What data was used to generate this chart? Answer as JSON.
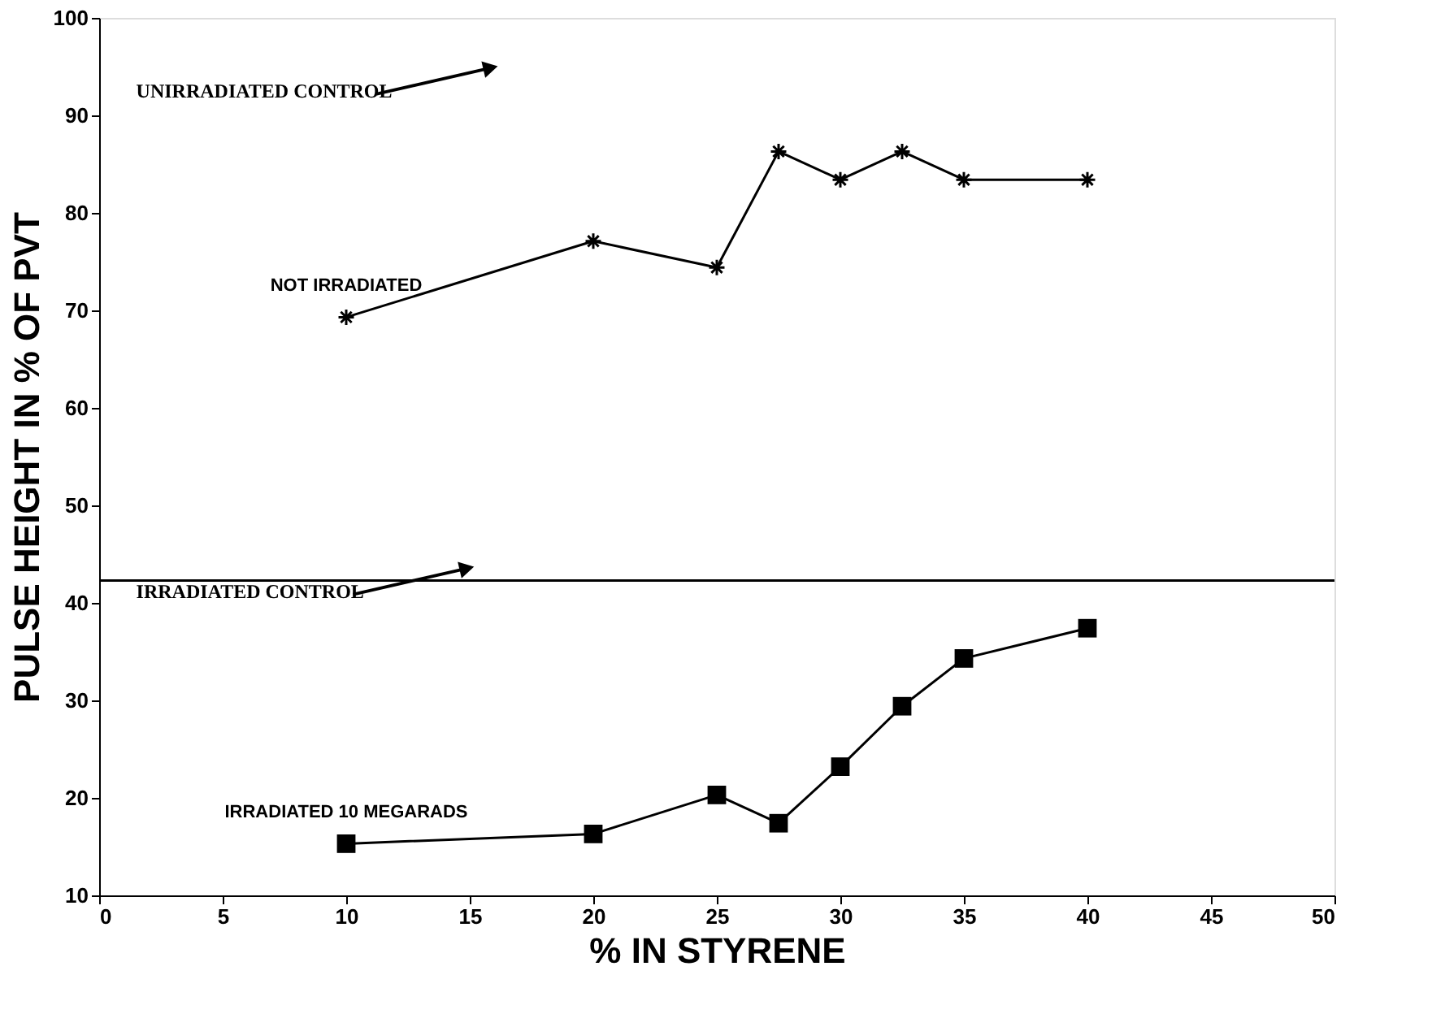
{
  "chart_data": {
    "type": "line",
    "xlabel": "% IN STYRENE",
    "ylabel": "PULSE HEIGHT IN % OF PVT",
    "x": [
      10,
      20,
      25,
      27.5,
      30,
      32.5,
      35,
      40
    ],
    "series": [
      {
        "name": "NOT IRRADIATED",
        "color": "#000000",
        "marker": "cross",
        "values": [
          69.3,
          77.1,
          74.4,
          86.3,
          83.4,
          86.3,
          83.4,
          83.4
        ]
      },
      {
        "name": "IRRADIATED 10 MEGARADS",
        "color": "#000000",
        "marker": "square",
        "values": [
          15.3,
          16.3,
          20.3,
          17.4,
          23.2,
          29.4,
          34.3,
          37.4
        ]
      }
    ],
    "xlim": [
      0,
      50
    ],
    "xticks": [
      0,
      5,
      10,
      15,
      20,
      25,
      30,
      35,
      40,
      45,
      50
    ],
    "ylim": [
      10,
      100
    ],
    "yticks": [
      10,
      20,
      30,
      40,
      50,
      60,
      70,
      80,
      90,
      100
    ],
    "ref_lines": [
      {
        "axis": "y",
        "value": 42.3,
        "color": "#000000"
      }
    ],
    "annotations": [
      "UNIRRADIATED CONTROL",
      "IRRADIATED CONTROL"
    ],
    "grid": false,
    "legend": false,
    "line_style": "solid"
  }
}
